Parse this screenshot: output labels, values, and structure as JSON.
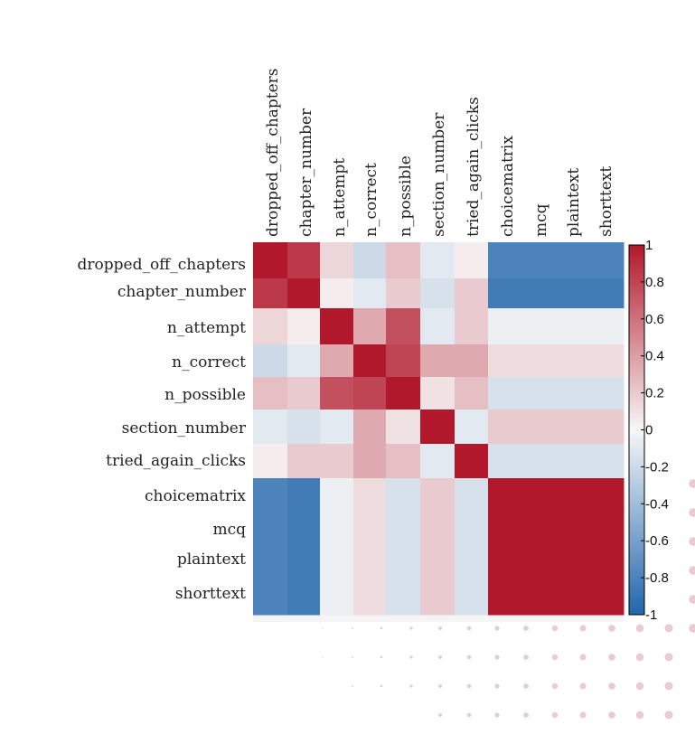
{
  "chart_data": {
    "type": "heatmap",
    "title": "",
    "xlabel": "",
    "ylabel": "",
    "variables": [
      "dropped_off_chapters",
      "chapter_number",
      "n_attempt",
      "n_correct",
      "n_possible",
      "section_number",
      "tried_again_clicks",
      "choicematrix",
      "mcq",
      "plaintext",
      "shorttext"
    ],
    "matrix": [
      [
        1.0,
        0.85,
        0.15,
        -0.2,
        0.25,
        -0.1,
        0.05,
        -0.8,
        -0.8,
        -0.8,
        -0.8
      ],
      [
        0.85,
        1.0,
        0.05,
        -0.1,
        0.2,
        -0.15,
        0.2,
        -0.85,
        -0.85,
        -0.85,
        -0.85
      ],
      [
        0.15,
        0.05,
        1.0,
        0.35,
        0.75,
        -0.1,
        0.2,
        -0.05,
        -0.05,
        -0.05,
        -0.05
      ],
      [
        -0.2,
        -0.1,
        0.35,
        1.0,
        0.8,
        0.35,
        0.35,
        0.12,
        0.12,
        0.12,
        0.12
      ],
      [
        0.25,
        0.2,
        0.75,
        0.8,
        1.0,
        0.1,
        0.25,
        -0.15,
        -0.15,
        -0.15,
        -0.15
      ],
      [
        -0.1,
        -0.15,
        -0.1,
        0.35,
        0.1,
        1.0,
        -0.1,
        0.2,
        0.2,
        0.2,
        0.2
      ],
      [
        0.05,
        0.2,
        0.2,
        0.35,
        0.25,
        -0.1,
        1.0,
        -0.15,
        -0.15,
        -0.15,
        -0.15
      ],
      [
        -0.8,
        -0.85,
        -0.05,
        0.12,
        -0.15,
        0.2,
        -0.15,
        1.0,
        1.0,
        1.0,
        1.0
      ],
      [
        -0.8,
        -0.85,
        -0.05,
        0.12,
        -0.15,
        0.2,
        -0.15,
        1.0,
        1.0,
        1.0,
        1.0
      ],
      [
        -0.8,
        -0.85,
        -0.05,
        0.12,
        -0.15,
        0.2,
        -0.15,
        1.0,
        1.0,
        1.0,
        1.0
      ],
      [
        -0.8,
        -0.85,
        -0.05,
        0.12,
        -0.15,
        0.2,
        -0.15,
        1.0,
        1.0,
        1.0,
        1.0
      ]
    ],
    "color_scale": {
      "min": -1,
      "max": 1,
      "ticks": [
        "1",
        "0.8",
        "0.6",
        "0.4",
        "0.2",
        "0",
        "-0.2",
        "-0.4",
        "-0.6",
        "-0.8",
        "-1"
      ],
      "colors": [
        "#2166ac",
        "#f7f7f7",
        "#b2182b"
      ],
      "placement": "right"
    },
    "grid": false
  }
}
